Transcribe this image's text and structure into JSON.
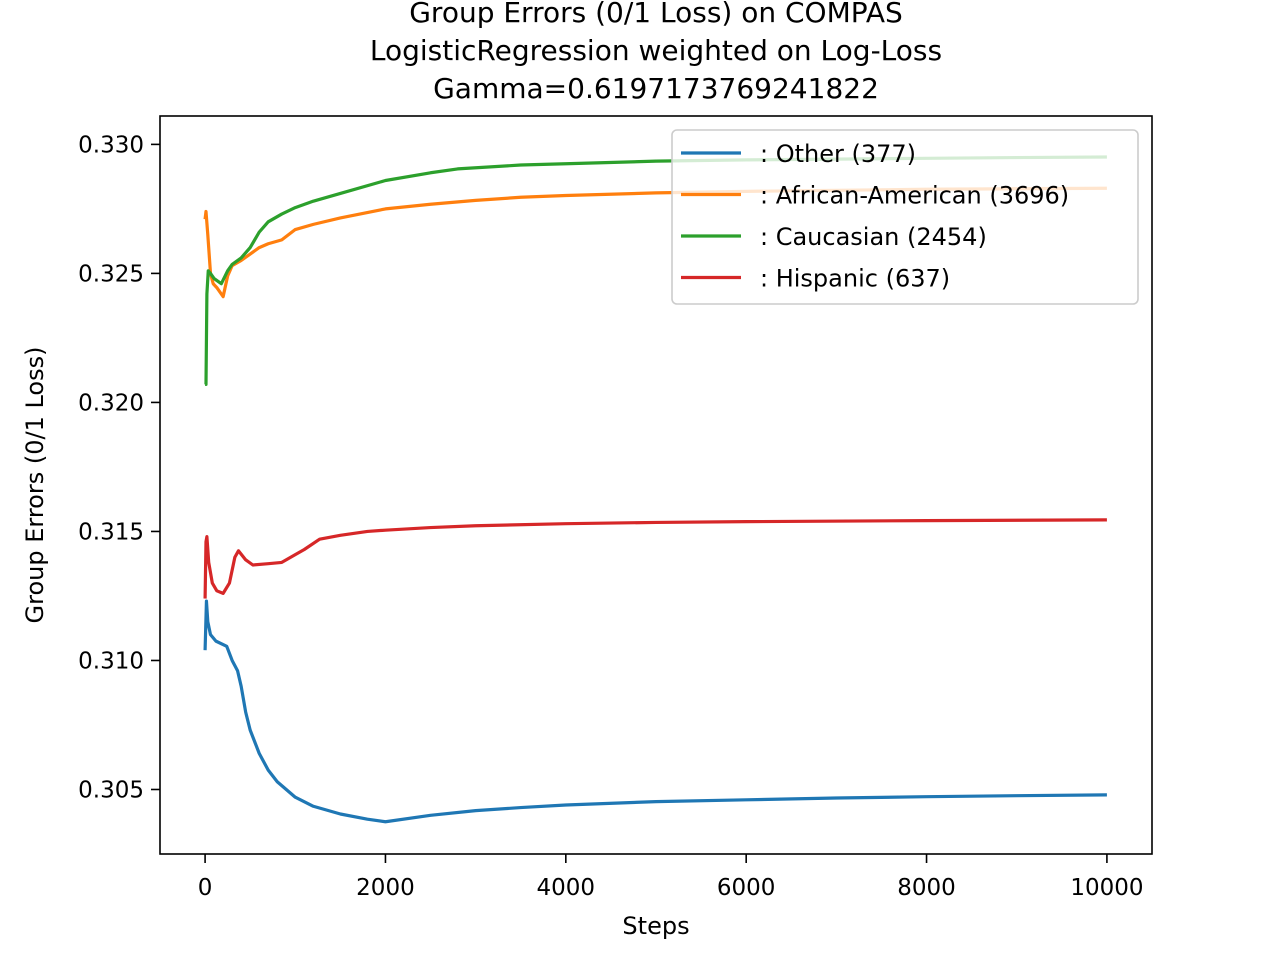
{
  "chart_data": {
    "type": "line",
    "title": [
      "Group Errors (0/1 Loss) on COMPAS",
      "LogisticRegression weighted on Log-Loss",
      "Gamma=0.6197173769241822"
    ],
    "xlabel": "Steps",
    "ylabel": "Group Errors (0/1 Loss)",
    "xlim": [
      -500,
      10500
    ],
    "ylim": [
      0.3025,
      0.3311
    ],
    "xticks": [
      0,
      2000,
      4000,
      6000,
      8000,
      10000
    ],
    "xtick_labels": [
      "0",
      "2000",
      "4000",
      "6000",
      "8000",
      "10000"
    ],
    "yticks": [
      0.305,
      0.31,
      0.315,
      0.32,
      0.325,
      0.33
    ],
    "ytick_labels": [
      "0.305",
      "0.310",
      "0.315",
      "0.320",
      "0.325",
      "0.330"
    ],
    "grid": false,
    "legend_position": "top-right",
    "series": [
      {
        "name": ": Other  (377)",
        "color": "#1f77b4",
        "points": [
          [
            0,
            0.3104
          ],
          [
            15,
            0.3123
          ],
          [
            30,
            0.3115
          ],
          [
            60,
            0.311
          ],
          [
            120,
            0.31075
          ],
          [
            240,
            0.31055
          ],
          [
            300,
            0.31
          ],
          [
            360,
            0.3096
          ],
          [
            400,
            0.309
          ],
          [
            450,
            0.308
          ],
          [
            500,
            0.3073
          ],
          [
            600,
            0.3064
          ],
          [
            700,
            0.30575
          ],
          [
            800,
            0.3053
          ],
          [
            1000,
            0.3047
          ],
          [
            1200,
            0.30435
          ],
          [
            1500,
            0.30405
          ],
          [
            1800,
            0.30385
          ],
          [
            2000,
            0.30375
          ],
          [
            2500,
            0.304
          ],
          [
            3000,
            0.30418
          ],
          [
            3500,
            0.3043
          ],
          [
            4000,
            0.3044
          ],
          [
            5000,
            0.30453
          ],
          [
            6000,
            0.3046
          ],
          [
            7000,
            0.30467
          ],
          [
            8000,
            0.30472
          ],
          [
            9000,
            0.30476
          ],
          [
            10000,
            0.30479
          ]
        ]
      },
      {
        "name": ": African-American  (3696)",
        "color": "#ff7f0e",
        "points": [
          [
            0,
            0.3271
          ],
          [
            10,
            0.3274
          ],
          [
            30,
            0.3265
          ],
          [
            60,
            0.325
          ],
          [
            90,
            0.3246
          ],
          [
            130,
            0.32445
          ],
          [
            200,
            0.3241
          ],
          [
            250,
            0.3249
          ],
          [
            300,
            0.3253
          ],
          [
            400,
            0.3255
          ],
          [
            500,
            0.32575
          ],
          [
            600,
            0.326
          ],
          [
            700,
            0.32615
          ],
          [
            850,
            0.3263
          ],
          [
            1000,
            0.3267
          ],
          [
            1200,
            0.3269
          ],
          [
            1500,
            0.32715
          ],
          [
            2000,
            0.3275
          ],
          [
            2500,
            0.32768
          ],
          [
            3000,
            0.32783
          ],
          [
            3500,
            0.32795
          ],
          [
            4000,
            0.32802
          ],
          [
            5000,
            0.32812
          ],
          [
            6000,
            0.32818
          ],
          [
            7000,
            0.32822
          ],
          [
            8000,
            0.32826
          ],
          [
            9000,
            0.32828
          ],
          [
            10000,
            0.3283
          ]
        ]
      },
      {
        "name": ": Caucasian  (2454)",
        "color": "#2ca02c",
        "points": [
          [
            0,
            0.3207
          ],
          [
            10,
            0.3207
          ],
          [
            20,
            0.3242
          ],
          [
            35,
            0.3251
          ],
          [
            60,
            0.325
          ],
          [
            100,
            0.3248
          ],
          [
            180,
            0.3246
          ],
          [
            250,
            0.3251
          ],
          [
            300,
            0.32535
          ],
          [
            400,
            0.3256
          ],
          [
            500,
            0.326
          ],
          [
            600,
            0.3266
          ],
          [
            700,
            0.327
          ],
          [
            850,
            0.3273
          ],
          [
            1000,
            0.32755
          ],
          [
            1200,
            0.3278
          ],
          [
            1500,
            0.3281
          ],
          [
            2000,
            0.3286
          ],
          [
            2500,
            0.3289
          ],
          [
            2800,
            0.32905
          ],
          [
            3500,
            0.3292
          ],
          [
            4000,
            0.32925
          ],
          [
            5000,
            0.32935
          ],
          [
            6000,
            0.3294
          ],
          [
            7000,
            0.32943
          ],
          [
            8000,
            0.32946
          ],
          [
            9000,
            0.32949
          ],
          [
            10000,
            0.32951
          ]
        ]
      },
      {
        "name": ": Hispanic  (637)",
        "color": "#d62728",
        "points": [
          [
            0,
            0.3124
          ],
          [
            10,
            0.3146
          ],
          [
            20,
            0.3148
          ],
          [
            40,
            0.3138
          ],
          [
            80,
            0.313
          ],
          [
            130,
            0.3127
          ],
          [
            200,
            0.3126
          ],
          [
            270,
            0.313
          ],
          [
            330,
            0.314
          ],
          [
            370,
            0.31425
          ],
          [
            450,
            0.3139
          ],
          [
            530,
            0.3137
          ],
          [
            700,
            0.31375
          ],
          [
            850,
            0.3138
          ],
          [
            1000,
            0.3141
          ],
          [
            1100,
            0.3143
          ],
          [
            1270,
            0.3147
          ],
          [
            1500,
            0.31485
          ],
          [
            1800,
            0.315
          ],
          [
            2000,
            0.31505
          ],
          [
            2500,
            0.31515
          ],
          [
            3000,
            0.31522
          ],
          [
            4000,
            0.3153
          ],
          [
            5000,
            0.31535
          ],
          [
            6000,
            0.31538
          ],
          [
            8000,
            0.31542
          ],
          [
            10000,
            0.31545
          ]
        ]
      }
    ]
  }
}
